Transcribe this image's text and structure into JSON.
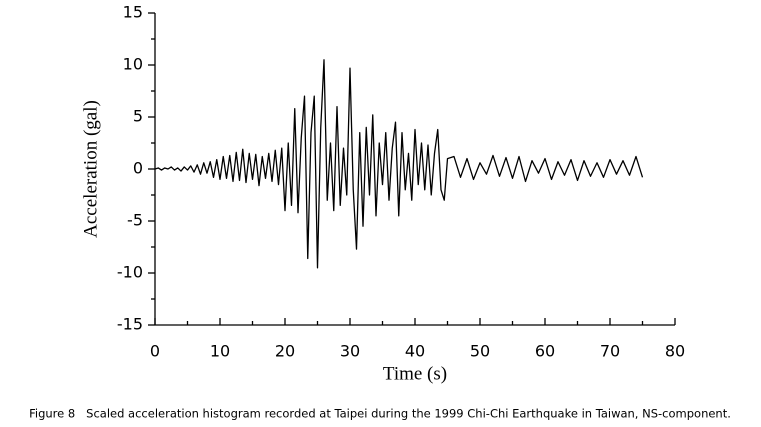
{
  "chart_data": {
    "type": "line",
    "xlabel": "Time (s)",
    "ylabel": "Acceleration (gal)",
    "caption": "Figure 8   Scaled acceleration histogram recorded at Taipei during the 1999 Chi-Chi Earthquake in Taiwan, NS-component.",
    "color": "#000000",
    "xlim": [
      0,
      80
    ],
    "ylim": [
      -15,
      15
    ],
    "xticks": [
      0,
      10,
      20,
      30,
      40,
      50,
      60,
      70,
      80
    ],
    "yticks": [
      -15,
      -10,
      -5,
      0,
      5,
      10,
      15
    ],
    "xminorticks": [
      5,
      15,
      25,
      35,
      45,
      55,
      65,
      75
    ],
    "yminorticks": [
      -12.5,
      -7.5,
      -2.5,
      2.5,
      7.5,
      12.5
    ],
    "x": [
      0,
      0.5,
      1,
      1.5,
      2,
      2.5,
      3,
      3.5,
      4,
      4.5,
      5,
      5.5,
      6,
      6.5,
      7,
      7.5,
      8,
      8.5,
      9,
      9.5,
      10,
      10.5,
      11,
      11.5,
      12,
      12.5,
      13,
      13.5,
      14,
      14.5,
      15,
      15.5,
      16,
      16.5,
      17,
      17.5,
      18,
      18.5,
      19,
      19.5,
      20,
      20.5,
      21,
      21.5,
      22,
      22.5,
      23,
      23.5,
      24,
      24.5,
      25,
      25.5,
      26,
      26.5,
      27,
      27.5,
      28,
      28.5,
      29,
      29.5,
      30,
      30.5,
      31,
      31.5,
      32,
      32.5,
      33,
      33.5,
      34,
      34.5,
      35,
      35.5,
      36,
      36.5,
      37,
      37.5,
      38,
      38.5,
      39,
      39.5,
      40,
      40.5,
      41,
      41.5,
      42,
      42.5,
      43,
      43.5,
      44,
      44.5,
      45,
      46,
      47,
      48,
      49,
      50,
      51,
      52,
      53,
      54,
      55,
      56,
      57,
      58,
      59,
      60,
      61,
      62,
      63,
      64,
      65,
      66,
      67,
      68,
      69,
      70,
      71,
      72,
      73,
      74,
      75
    ],
    "values": [
      0,
      0.1,
      -0.1,
      0.1,
      0,
      0.2,
      -0.1,
      0.1,
      -0.2,
      0.2,
      -0.1,
      0.3,
      -0.3,
      0.4,
      -0.5,
      0.6,
      -0.4,
      0.7,
      -0.8,
      0.9,
      -1.0,
      1.2,
      -0.9,
      1.3,
      -1.2,
      1.6,
      -1.1,
      1.9,
      -1.3,
      1.5,
      -1.0,
      1.4,
      -1.6,
      1.2,
      -0.9,
      1.5,
      -1.2,
      1.8,
      -1.5,
      2.0,
      -4.0,
      2.5,
      -3.5,
      5.8,
      -4.2,
      3.0,
      7.0,
      -8.6,
      3.5,
      7.0,
      -9.5,
      4.0,
      10.5,
      -3.0,
      2.5,
      -4.0,
      6.0,
      -3.5,
      2.0,
      -2.5,
      9.7,
      -2.0,
      -7.7,
      3.5,
      -5.5,
      4.0,
      -2.5,
      5.2,
      -4.5,
      2.5,
      -1.5,
      3.5,
      -3.0,
      2.0,
      4.5,
      -4.5,
      3.5,
      -2.0,
      1.5,
      -3.0,
      3.8,
      -1.5,
      2.5,
      -2.0,
      2.3,
      -2.5,
      1.5,
      3.8,
      -2.0,
      -3.0,
      1.0,
      1.2,
      -0.8,
      1.0,
      -1.0,
      0.6,
      -0.5,
      1.3,
      -0.7,
      1.1,
      -0.9,
      1.2,
      -1.2,
      0.8,
      -0.4,
      1.0,
      -1.0,
      0.7,
      -0.6,
      0.9,
      -1.1,
      0.8,
      -0.7,
      0.6,
      -0.8,
      0.9,
      -0.5,
      0.8,
      -0.6,
      1.2,
      -0.8
    ]
  }
}
